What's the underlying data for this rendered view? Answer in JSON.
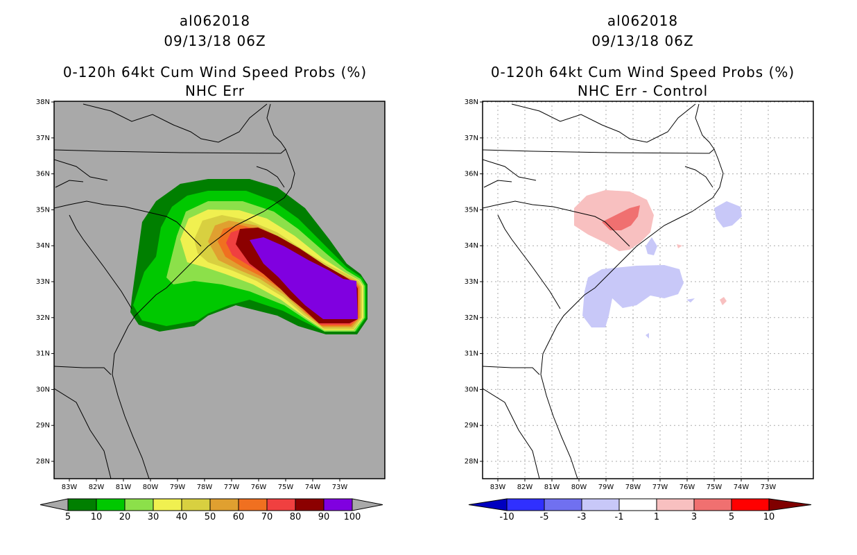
{
  "left": {
    "title_lines": [
      "al062018",
      "09/13/18 06Z",
      "0-120h 64kt Cum Wind Speed Probs (%)",
      "NHC Err"
    ],
    "background": "#a9a9a9",
    "colorbar_labels": [
      "5",
      "10",
      "20",
      "30",
      "40",
      "50",
      "60",
      "70",
      "80",
      "90",
      "100"
    ],
    "colorbar_colors": [
      "#007f00",
      "#00c800",
      "#8ce04a",
      "#f0f050",
      "#d8d040",
      "#e0a030",
      "#f07020",
      "#f04040",
      "#8c0000",
      "#8000e0"
    ]
  },
  "right": {
    "title_lines": [
      "al062018",
      "09/13/18 06Z",
      "0-120h 64kt Cum Wind Speed Probs (%)",
      "NHC Err - Control"
    ],
    "background": "#ffffff",
    "colorbar_labels": [
      "-10",
      "-5",
      "-3",
      "-1",
      "1",
      "3",
      "5",
      "10"
    ],
    "colorbar_colors": [
      "#0000c0",
      "#3030ff",
      "#7070f0",
      "#c8c8f8",
      "#ffffff",
      "#f8c0c0",
      "#f07070",
      "#ff0000",
      "#800000"
    ]
  },
  "lat_labels": [
    "38N",
    "37N",
    "36N",
    "35N",
    "34N",
    "33N",
    "32N",
    "31N",
    "30N",
    "29N",
    "28N"
  ],
  "lon_labels": [
    "83W",
    "82W",
    "81W",
    "80W",
    "79W",
    "78W",
    "77W",
    "76W",
    "75W",
    "74W",
    "73W"
  ]
}
